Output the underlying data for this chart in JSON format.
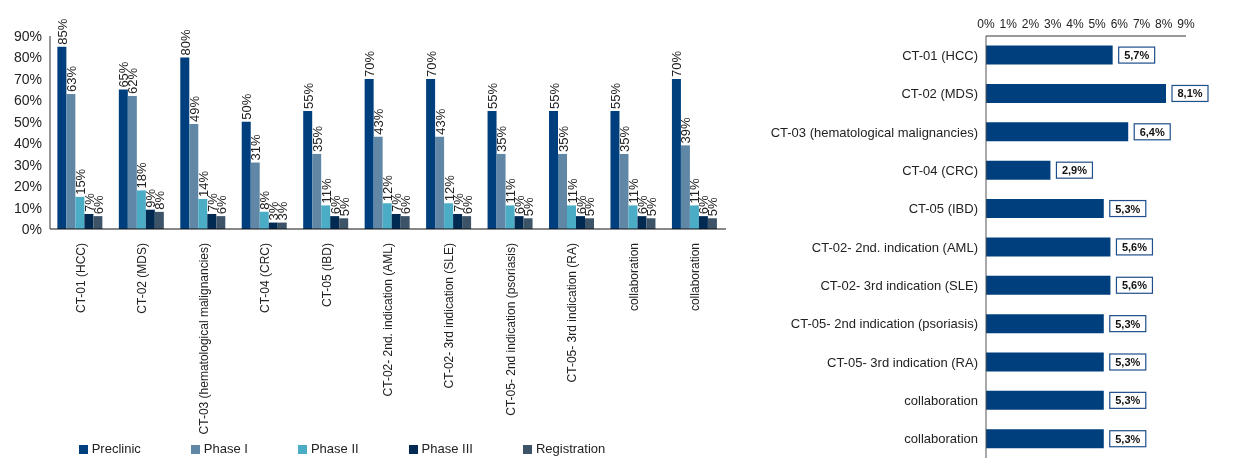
{
  "chart_data": [
    {
      "type": "bar",
      "categories": [
        "CT-01 (HCC)",
        "CT-02 (MDS)",
        "CT-03 (hematological malignancies)",
        "CT-04 (CRC)",
        "CT-05 (IBD)",
        "CT-02- 2nd. indication (AML)",
        "CT-02- 3rd indication (SLE)",
        "CT-05- 2nd indication (psoriasis)",
        "CT-05- 3rd indication (RA)",
        "collaboration",
        "collaboration"
      ],
      "series": [
        {
          "name": "Preclinic",
          "color": "#003f7d",
          "values": [
            85,
            65,
            80,
            50,
            55,
            70,
            70,
            55,
            55,
            55,
            70
          ],
          "value_labels": [
            "85%",
            "65%",
            "80%",
            "50%",
            "55%",
            "70%",
            "70%",
            "55%",
            "55%",
            "55%",
            "70%"
          ]
        },
        {
          "name": "Phase I",
          "color": "#6088a6",
          "values": [
            63,
            62,
            49,
            31,
            35,
            43,
            43,
            35,
            35,
            35,
            39
          ],
          "value_labels": [
            "63%",
            "62%",
            "49%",
            "31%",
            "35%",
            "43%",
            "43%",
            "35%",
            "35%",
            "35%",
            "39%"
          ]
        },
        {
          "name": "Phase II",
          "color": "#4bacc6",
          "values": [
            15,
            18,
            14,
            8,
            11,
            12,
            12,
            11,
            11,
            11,
            11
          ],
          "value_labels": [
            "15%",
            "18%",
            "14%",
            "8%",
            "11%",
            "12%",
            "12%",
            "11%",
            "11%",
            "11%",
            "11%"
          ]
        },
        {
          "name": "Phase III",
          "color": "#002a52",
          "values": [
            7,
            9,
            7,
            3,
            6,
            7,
            7,
            6,
            6,
            6,
            6
          ],
          "value_labels": [
            "7%",
            "9%",
            "7%",
            "3%",
            "6%",
            "7%",
            "7%",
            "6%",
            "6%",
            "6%",
            "6%"
          ]
        },
        {
          "name": "Registration",
          "color": "#3d5468",
          "values": [
            6,
            8,
            6,
            3,
            5,
            6,
            6,
            5,
            5,
            5,
            5
          ],
          "value_labels": [
            "6%",
            "8%",
            "6%",
            "3%",
            "5%",
            "6%",
            "6%",
            "5%",
            "5%",
            "5%",
            "5%"
          ]
        }
      ],
      "ylim": [
        0,
        90
      ],
      "yticks": [
        {
          "value": 0,
          "label": "0%"
        },
        {
          "value": 10,
          "label": "10%"
        },
        {
          "value": 20,
          "label": "20%"
        },
        {
          "value": 30,
          "label": "30%"
        },
        {
          "value": 40,
          "label": "40%"
        },
        {
          "value": 50,
          "label": "50%"
        },
        {
          "value": 60,
          "label": "60%"
        },
        {
          "value": 70,
          "label": "70%"
        },
        {
          "value": 80,
          "label": "80%"
        },
        {
          "value": 90,
          "label": "90%"
        }
      ],
      "legend": "bottom"
    },
    {
      "type": "bar",
      "orientation": "horizontal",
      "categories": [
        "CT-01 (HCC)",
        "CT-02 (MDS)",
        "CT-03 (hematological malignancies)",
        "CT-04 (CRC)",
        "CT-05 (IBD)",
        "CT-02- 2nd. indication (AML)",
        "CT-02- 3rd indication (SLE)",
        "CT-05- 2nd indication (psoriasis)",
        "CT-05- 3rd indication (RA)",
        "collaboration",
        "collaboration"
      ],
      "values": [
        5.7,
        8.1,
        6.4,
        2.9,
        5.3,
        5.6,
        5.6,
        5.3,
        5.3,
        5.3,
        5.3
      ],
      "color": "#003f7d",
      "value_labels": [
        "5,7%",
        "8,1%",
        "6,4%",
        "2,9%",
        "5,3%",
        "5,6%",
        "5,6%",
        "5,3%",
        "5,3%",
        "5,3%",
        "5,3%"
      ],
      "xlim": [
        0,
        9
      ],
      "xticks": [
        {
          "value": 0,
          "label": "0%"
        },
        {
          "value": 1,
          "label": "1%"
        },
        {
          "value": 2,
          "label": "2%"
        },
        {
          "value": 3,
          "label": "3%"
        },
        {
          "value": 4,
          "label": "4%"
        },
        {
          "value": 5,
          "label": "5%"
        },
        {
          "value": 6,
          "label": "6%"
        },
        {
          "value": 7,
          "label": "7%"
        },
        {
          "value": 8,
          "label": "8%"
        },
        {
          "value": 9,
          "label": "9%"
        }
      ]
    }
  ]
}
